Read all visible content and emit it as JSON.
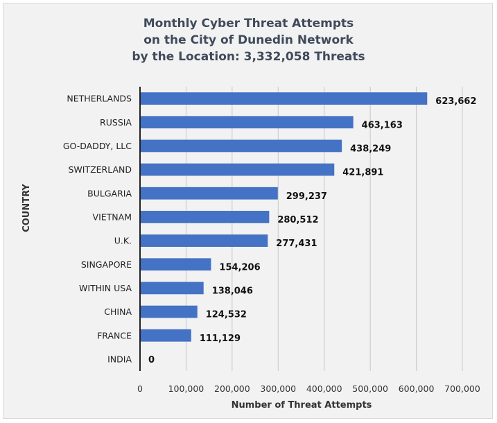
{
  "chart_data": {
    "type": "bar",
    "orientation": "horizontal",
    "title": [
      "Monthly Cyber Threat Attempts",
      "on the City of Dunedin Network",
      "by the Location: 3,332,058 Threats"
    ],
    "xlabel": "Number of Threat Attempts",
    "ylabel": "COUNTRY",
    "categories": [
      "NETHERLANDS",
      "RUSSIA",
      "GO-DADDY, LLC",
      "SWITZERLAND",
      "BULGARIA",
      "VIETNAM",
      "U.K.",
      "SINGAPORE",
      "WITHIN USA",
      "CHINA",
      "FRANCE",
      "INDIA"
    ],
    "values": [
      623662,
      463163,
      438249,
      421891,
      299237,
      280512,
      277431,
      154206,
      138046,
      124532,
      111129,
      0
    ],
    "value_labels": [
      "623,662",
      "463,163",
      "438,249",
      "421,891",
      "299,237",
      "280,512",
      "277,431",
      "154,206",
      "138,046",
      "124,532",
      "111,129",
      "0"
    ],
    "xlim": [
      0,
      700000
    ],
    "xticks": [
      0,
      100000,
      200000,
      300000,
      400000,
      500000,
      600000,
      700000
    ],
    "xtick_labels": [
      "0",
      "100,000",
      "200,000",
      "300,000",
      "400,000",
      "500,000",
      "600,000",
      "700,000"
    ],
    "grid": "vertical",
    "legend": "none",
    "bar_color": "#4472c4"
  }
}
